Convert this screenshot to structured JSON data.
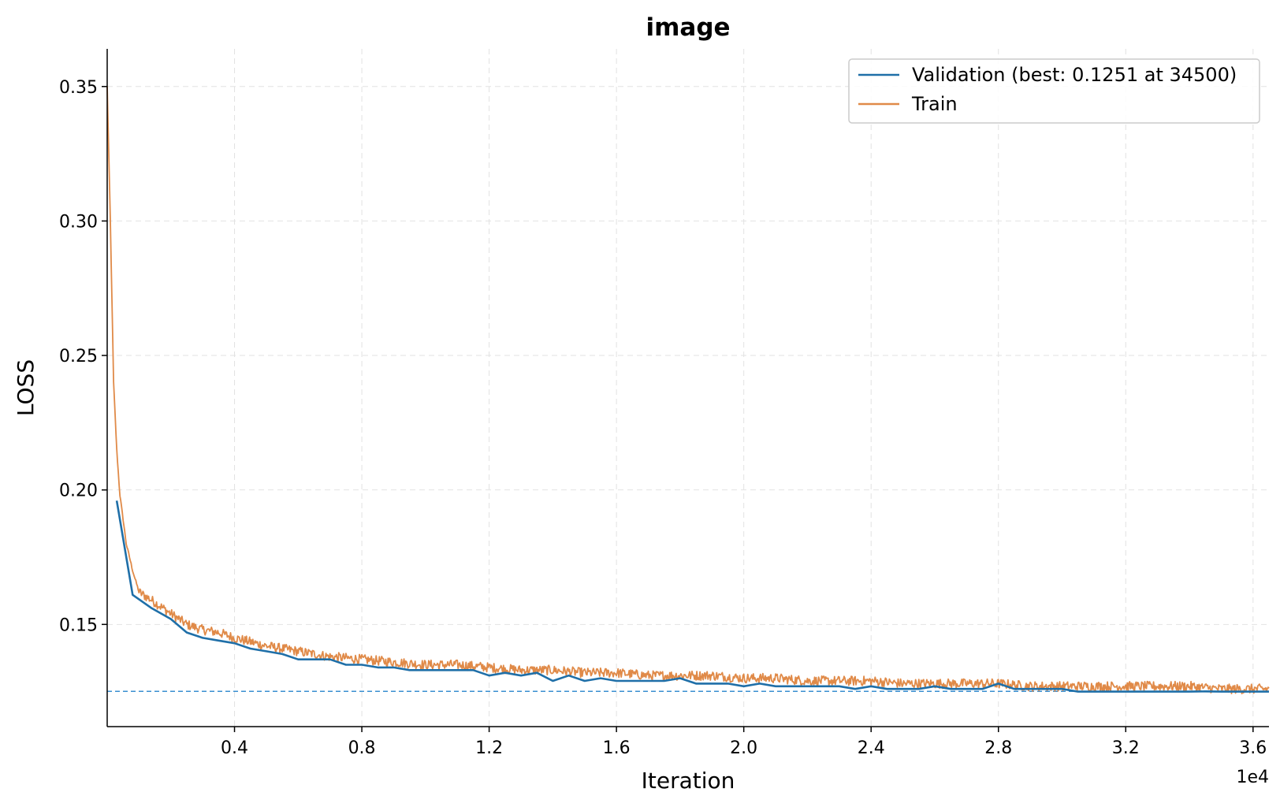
{
  "chart_data": {
    "type": "line",
    "title": "image",
    "xlabel": "Iteration",
    "ylabel": "LOSS",
    "x_offset_label": "1e4",
    "xlim": [
      0,
      36500
    ],
    "ylim": [
      0.112,
      0.364
    ],
    "xticks": [
      4000,
      8000,
      12000,
      16000,
      20000,
      24000,
      28000,
      32000,
      36000
    ],
    "xtick_labels": [
      "0.4",
      "0.8",
      "1.2",
      "1.6",
      "2.0",
      "2.4",
      "2.8",
      "3.2",
      "3.6"
    ],
    "yticks": [
      0.15,
      0.2,
      0.25,
      0.3,
      0.35
    ],
    "ytick_labels": [
      "0.15",
      "0.20",
      "0.25",
      "0.30",
      "0.35"
    ],
    "grid": true,
    "legend_position": "top-right",
    "best_line": {
      "y": 0.1251,
      "color": "#3a8fd1",
      "style": "dashed"
    },
    "series": [
      {
        "name": "Validation (best: 0.1251 at 34500)",
        "color": "#1f6fa8",
        "x": [
          300,
          800,
          1400,
          2000,
          2500,
          3000,
          3500,
          4000,
          4500,
          5000,
          5500,
          6000,
          6500,
          7000,
          7500,
          8000,
          8500,
          9000,
          9500,
          10000,
          10500,
          11000,
          11500,
          12000,
          12500,
          13000,
          13500,
          14000,
          14500,
          15000,
          15500,
          16000,
          16500,
          17000,
          17500,
          18000,
          18500,
          19000,
          19500,
          20000,
          20500,
          21000,
          21500,
          22000,
          22500,
          23000,
          23500,
          24000,
          24500,
          25000,
          25500,
          26000,
          26500,
          27000,
          27500,
          28000,
          28500,
          29000,
          29500,
          30000,
          30500,
          31000,
          31500,
          32000,
          32500,
          33000,
          33500,
          34000,
          34500,
          35000,
          35500,
          36000,
          36500
        ],
        "y": [
          0.196,
          0.161,
          0.156,
          0.152,
          0.147,
          0.145,
          0.144,
          0.143,
          0.141,
          0.14,
          0.139,
          0.137,
          0.137,
          0.137,
          0.135,
          0.135,
          0.134,
          0.134,
          0.133,
          0.133,
          0.133,
          0.133,
          0.133,
          0.131,
          0.132,
          0.131,
          0.132,
          0.129,
          0.131,
          0.129,
          0.13,
          0.129,
          0.129,
          0.129,
          0.129,
          0.13,
          0.128,
          0.128,
          0.128,
          0.127,
          0.128,
          0.127,
          0.127,
          0.127,
          0.127,
          0.127,
          0.126,
          0.127,
          0.126,
          0.126,
          0.126,
          0.127,
          0.126,
          0.126,
          0.126,
          0.128,
          0.126,
          0.126,
          0.126,
          0.126,
          0.125,
          0.125,
          0.125,
          0.125,
          0.125,
          0.125,
          0.125,
          0.125,
          0.1251,
          0.125,
          0.125,
          0.125,
          0.125
        ]
      },
      {
        "name": "Train",
        "color": "#e08a48",
        "x": [
          0,
          100,
          200,
          300,
          400,
          600,
          800,
          1000,
          1400,
          2000,
          2500,
          3000,
          3500,
          4000,
          5000,
          6000,
          7000,
          8000,
          9000,
          10000,
          11000,
          12000,
          13000,
          14000,
          15000,
          16000,
          17000,
          18000,
          19000,
          20000,
          21000,
          22000,
          23000,
          24000,
          25000,
          26000,
          27000,
          28000,
          29000,
          30000,
          31000,
          32000,
          33000,
          34000,
          35000,
          36000,
          36500
        ],
        "y": [
          0.35,
          0.3,
          0.24,
          0.215,
          0.198,
          0.18,
          0.17,
          0.162,
          0.159,
          0.154,
          0.15,
          0.148,
          0.147,
          0.145,
          0.142,
          0.14,
          0.138,
          0.137,
          0.136,
          0.135,
          0.135,
          0.134,
          0.133,
          0.133,
          0.132,
          0.132,
          0.131,
          0.131,
          0.131,
          0.13,
          0.13,
          0.129,
          0.129,
          0.129,
          0.128,
          0.128,
          0.128,
          0.128,
          0.127,
          0.127,
          0.127,
          0.127,
          0.127,
          0.127,
          0.126,
          0.126,
          0.126
        ]
      }
    ]
  }
}
